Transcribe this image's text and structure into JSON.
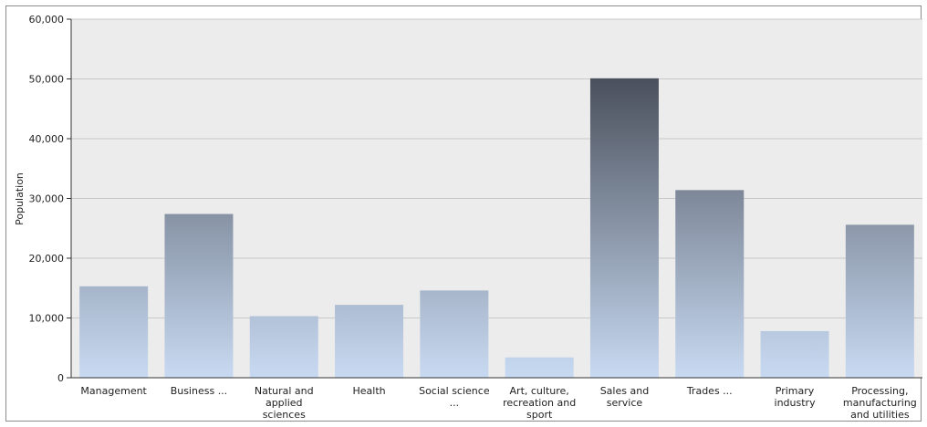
{
  "chart_data": {
    "type": "bar",
    "title": "",
    "xlabel": "",
    "ylabel": "Population",
    "ylim": [
      0,
      60000
    ],
    "yticks": [
      0,
      10000,
      20000,
      30000,
      40000,
      50000,
      60000
    ],
    "ytick_labels": [
      "0",
      "10,000",
      "20,000",
      "30,000",
      "40,000",
      "50,000",
      "60,000"
    ],
    "grid": true,
    "categories": [
      "Management",
      "Business ...",
      "Natural and applied sciences",
      "Health",
      "Social science ...",
      "Art, culture, recreation and sport",
      "Sales and service",
      "Trades ...",
      "Primary industry",
      "Processing, manufacturing and utilities"
    ],
    "category_label_lines": [
      [
        "Management"
      ],
      [
        "Business ..."
      ],
      [
        "Natural and",
        "applied",
        "sciences"
      ],
      [
        "Health"
      ],
      [
        "Social science",
        "..."
      ],
      [
        "Art, culture,",
        "recreation and",
        "sport"
      ],
      [
        "Sales and",
        "service"
      ],
      [
        "Trades ..."
      ],
      [
        "Primary",
        "industry"
      ],
      [
        "Processing,",
        "manufacturing",
        "and utilities"
      ]
    ],
    "values": [
      15300,
      27400,
      10300,
      12200,
      14600,
      3400,
      50100,
      31400,
      7800,
      25600
    ],
    "colors": {
      "plot_background": "#ececec",
      "grid": "#c8c8c8",
      "bar_light": "#c8daf2",
      "bar_dark": "#4a505c"
    }
  }
}
